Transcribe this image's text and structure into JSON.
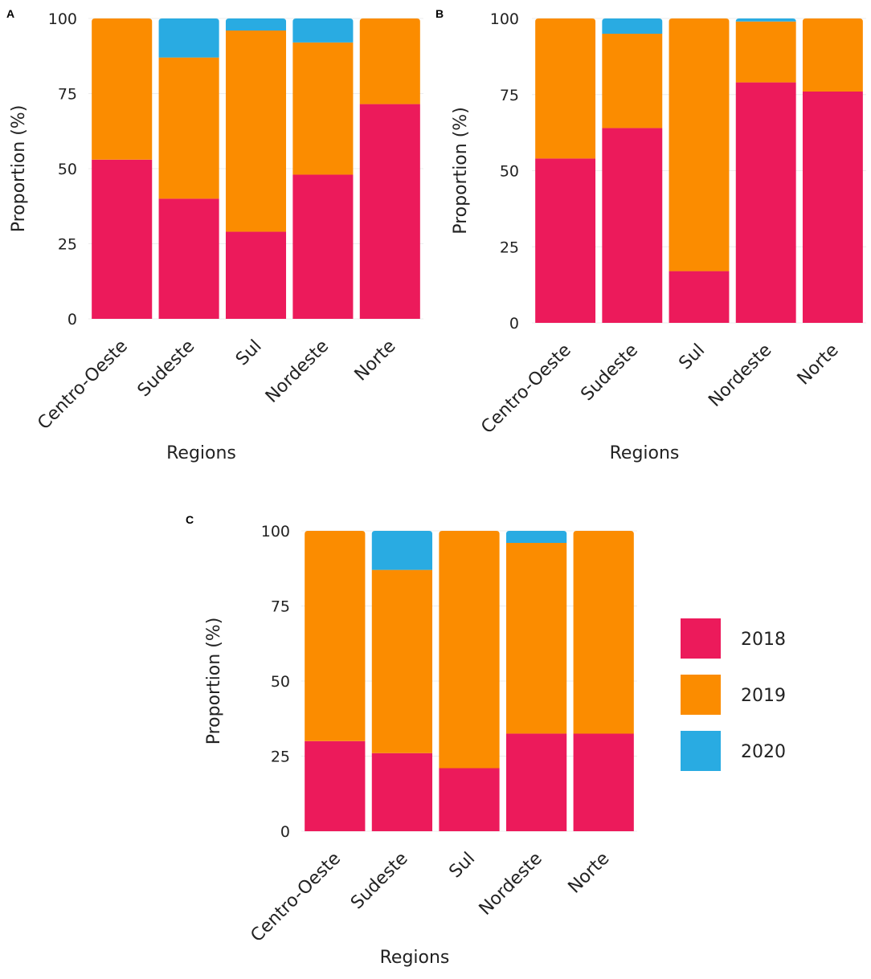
{
  "colors": {
    "2018": "#ec1a5b",
    "2019": "#fb8c00",
    "2020": "#29abe2"
  },
  "legend": {
    "items": [
      "2018",
      "2019",
      "2020"
    ]
  },
  "chart_data": [
    {
      "panel": "A",
      "type": "bar",
      "stacked": true,
      "categories": [
        "Centro-Oeste",
        "Sudeste",
        "Sul",
        "Nordeste",
        "Norte"
      ],
      "series": [
        {
          "name": "2018",
          "values": [
            53,
            40,
            29,
            48,
            71.5
          ]
        },
        {
          "name": "2019",
          "values": [
            47,
            47,
            67,
            44,
            28.5
          ]
        },
        {
          "name": "2020",
          "values": [
            0,
            13,
            4,
            8,
            0
          ]
        }
      ],
      "xlabel": "Regions",
      "ylabel": "Proportion (%)",
      "yticks": [
        "0",
        "25",
        "50",
        "75",
        "100"
      ],
      "ylim": [
        0,
        100
      ]
    },
    {
      "panel": "B",
      "type": "bar",
      "stacked": true,
      "categories": [
        "Centro-Oeste",
        "Sudeste",
        "Sul",
        "Nordeste",
        "Norte"
      ],
      "series": [
        {
          "name": "2018",
          "values": [
            54,
            64,
            17,
            79,
            76
          ]
        },
        {
          "name": "2019",
          "values": [
            46,
            31,
            83,
            20,
            24
          ]
        },
        {
          "name": "2020",
          "values": [
            0,
            5,
            0,
            1,
            0
          ]
        }
      ],
      "xlabel": "Regions",
      "ylabel": "Proportion (%)",
      "yticks": [
        "0",
        "25",
        "50",
        "75",
        "100"
      ],
      "ylim": [
        0,
        100
      ]
    },
    {
      "panel": "C",
      "type": "bar",
      "stacked": true,
      "categories": [
        "Centro-Oeste",
        "Sudeste",
        "Sul",
        "Nordeste",
        "Norte"
      ],
      "series": [
        {
          "name": "2018",
          "values": [
            30,
            26,
            21,
            32.5,
            32.5
          ]
        },
        {
          "name": "2019",
          "values": [
            70,
            61,
            79,
            63.5,
            67.5
          ]
        },
        {
          "name": "2020",
          "values": [
            0,
            13,
            0,
            4,
            0
          ]
        }
      ],
      "xlabel": "Regions",
      "ylabel": "Proportion (%)",
      "yticks": [
        "0",
        "25",
        "50",
        "75",
        "100"
      ],
      "ylim": [
        0,
        100
      ]
    }
  ]
}
